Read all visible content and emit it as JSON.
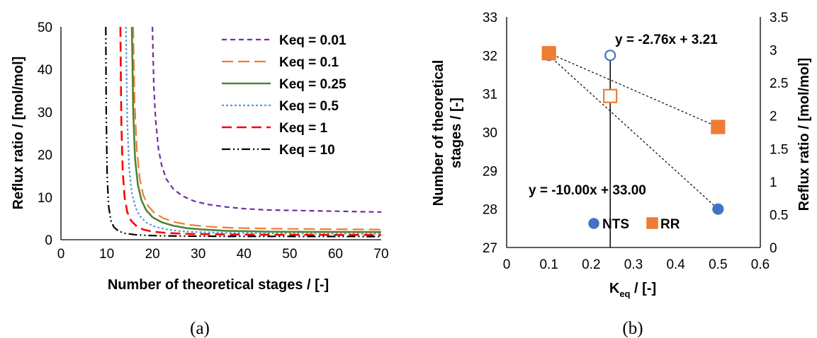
{
  "chart_data": [
    {
      "id": "a",
      "type": "line",
      "caption": "(a)",
      "xlabel": "Number of theoretical stages / [-]",
      "ylabel": "Reflux ratio / [mol/mol]",
      "xlim": [
        0,
        70
      ],
      "ylim": [
        0,
        50
      ],
      "xticks": [
        0,
        10,
        20,
        30,
        40,
        50,
        60,
        70
      ],
      "yticks": [
        0,
        10,
        20,
        30,
        40,
        50
      ],
      "grid": false,
      "legend_position": "top-right",
      "series": [
        {
          "name": "Keq = 0.01",
          "color": "#7030A0",
          "dash": "7,5",
          "width": 2.2,
          "x": [
            20,
            20.3,
            20.7,
            21.3,
            22,
            23,
            24.5,
            26.5,
            29,
            32,
            36,
            40,
            45,
            50,
            55,
            60,
            65,
            70
          ],
          "y": [
            50,
            36,
            28,
            21.5,
            17.5,
            14.3,
            12,
            10.3,
            9.1,
            8.3,
            7.7,
            7.3,
            7.0,
            6.9,
            6.8,
            6.7,
            6.6,
            6.5
          ]
        },
        {
          "name": "Keq = 0.1",
          "color": "#ED7D31",
          "dash": "16,7",
          "width": 2.2,
          "x": [
            15.8,
            16.1,
            16.6,
            17.2,
            18,
            19,
            20.5,
            22.5,
            25,
            28,
            32,
            37,
            45,
            55,
            70
          ],
          "y": [
            50,
            32,
            21,
            14.5,
            10.5,
            8.0,
            6.2,
            5.0,
            4.1,
            3.5,
            3.1,
            2.8,
            2.6,
            2.5,
            2.4
          ]
        },
        {
          "name": "Keq = 0.25",
          "color": "#548235",
          "dash": "",
          "width": 2.6,
          "x": [
            15.5,
            15.8,
            16.2,
            16.8,
            17.6,
            18.6,
            20,
            22,
            24.5,
            27.5,
            31,
            36,
            45,
            55,
            70
          ],
          "y": [
            50,
            30,
            19,
            13,
            9.3,
            7.0,
            5.3,
            4.1,
            3.3,
            2.7,
            2.4,
            2.1,
            1.9,
            1.85,
            1.8
          ]
        },
        {
          "name": "Keq = 0.5",
          "color": "#5B9BD5",
          "dash": "3,3",
          "width": 2.2,
          "x": [
            14.2,
            14.5,
            14.9,
            15.5,
            16.3,
            17.3,
            18.7,
            20.7,
            23.2,
            26.2,
            30,
            35,
            45,
            55,
            70
          ],
          "y": [
            50,
            28,
            17,
            11,
            7.5,
            5.5,
            4.0,
            3.0,
            2.4,
            2.0,
            1.8,
            1.65,
            1.5,
            1.45,
            1.4
          ]
        },
        {
          "name": "Keq = 1",
          "color": "#FF0000",
          "dash": "14,7",
          "width": 2.6,
          "x": [
            13,
            13.2,
            13.5,
            13.9,
            14.5,
            15.3,
            16.5,
            18,
            20,
            23,
            27,
            32,
            40,
            50,
            70
          ],
          "y": [
            50,
            28,
            16,
            10,
            6.5,
            4.5,
            3.2,
            2.4,
            1.9,
            1.6,
            1.4,
            1.3,
            1.2,
            1.15,
            1.1
          ]
        },
        {
          "name": "Keq = 10",
          "color": "#000000",
          "dash": "12,4,2,4,2,4",
          "width": 2.2,
          "x": [
            9.8,
            9.9,
            10.1,
            10.4,
            10.9,
            11.6,
            12.6,
            14,
            16,
            19,
            23,
            28,
            35,
            45,
            70
          ],
          "y": [
            50,
            30,
            15,
            8,
            4.5,
            2.9,
            2.0,
            1.5,
            1.2,
            1.0,
            0.9,
            0.85,
            0.8,
            0.78,
            0.75
          ]
        }
      ]
    },
    {
      "id": "b",
      "type": "scatter",
      "caption": "(b)",
      "xlabel_main": "K",
      "xlabel_sub": "eq",
      "xlabel_rest": " / [-]",
      "ylabel_left_line1": "Number of theoretical",
      "ylabel_left_line2": "stages / [-]",
      "ylabel_right": "Reflux ratio / [mol/mol]",
      "xlim": [
        0,
        0.6
      ],
      "ylim_left": [
        27,
        33
      ],
      "ylim_right": [
        0,
        3.5
      ],
      "xticks": [
        "0",
        "0.1",
        "0.2",
        "0.3",
        "0.4",
        "0.5",
        "0.6"
      ],
      "yticks_left": [
        "27",
        "28",
        "29",
        "30",
        "31",
        "32",
        "33"
      ],
      "yticks_right": [
        "0",
        "0.5",
        "1",
        "1.5",
        "2",
        "2.5",
        "3",
        "3.5"
      ],
      "legend": [
        "NTS",
        "RR"
      ],
      "legend_position": "bottom-center",
      "series": [
        {
          "name": "NTS",
          "axis": "left",
          "marker": "circle",
          "color": "#4472C4",
          "points": [
            {
              "x": 0.1,
              "y": 32,
              "filled": true
            },
            {
              "x": 0.245,
              "y": 32,
              "filled": false
            },
            {
              "x": 0.5,
              "y": 28,
              "filled": true
            }
          ],
          "trendline": "y = -10.00x + 33.00"
        },
        {
          "name": "RR",
          "axis": "right",
          "marker": "square",
          "color": "#ED7D31",
          "points": [
            {
              "x": 0.1,
              "y": 2.95,
              "filled": true
            },
            {
              "x": 0.245,
              "y": 2.3,
              "filled": false
            },
            {
              "x": 0.5,
              "y": 1.83,
              "filled": true
            }
          ],
          "trendline": "y = -2.76x + 3.21"
        }
      ],
      "vertical_line_x": 0.245
    }
  ]
}
